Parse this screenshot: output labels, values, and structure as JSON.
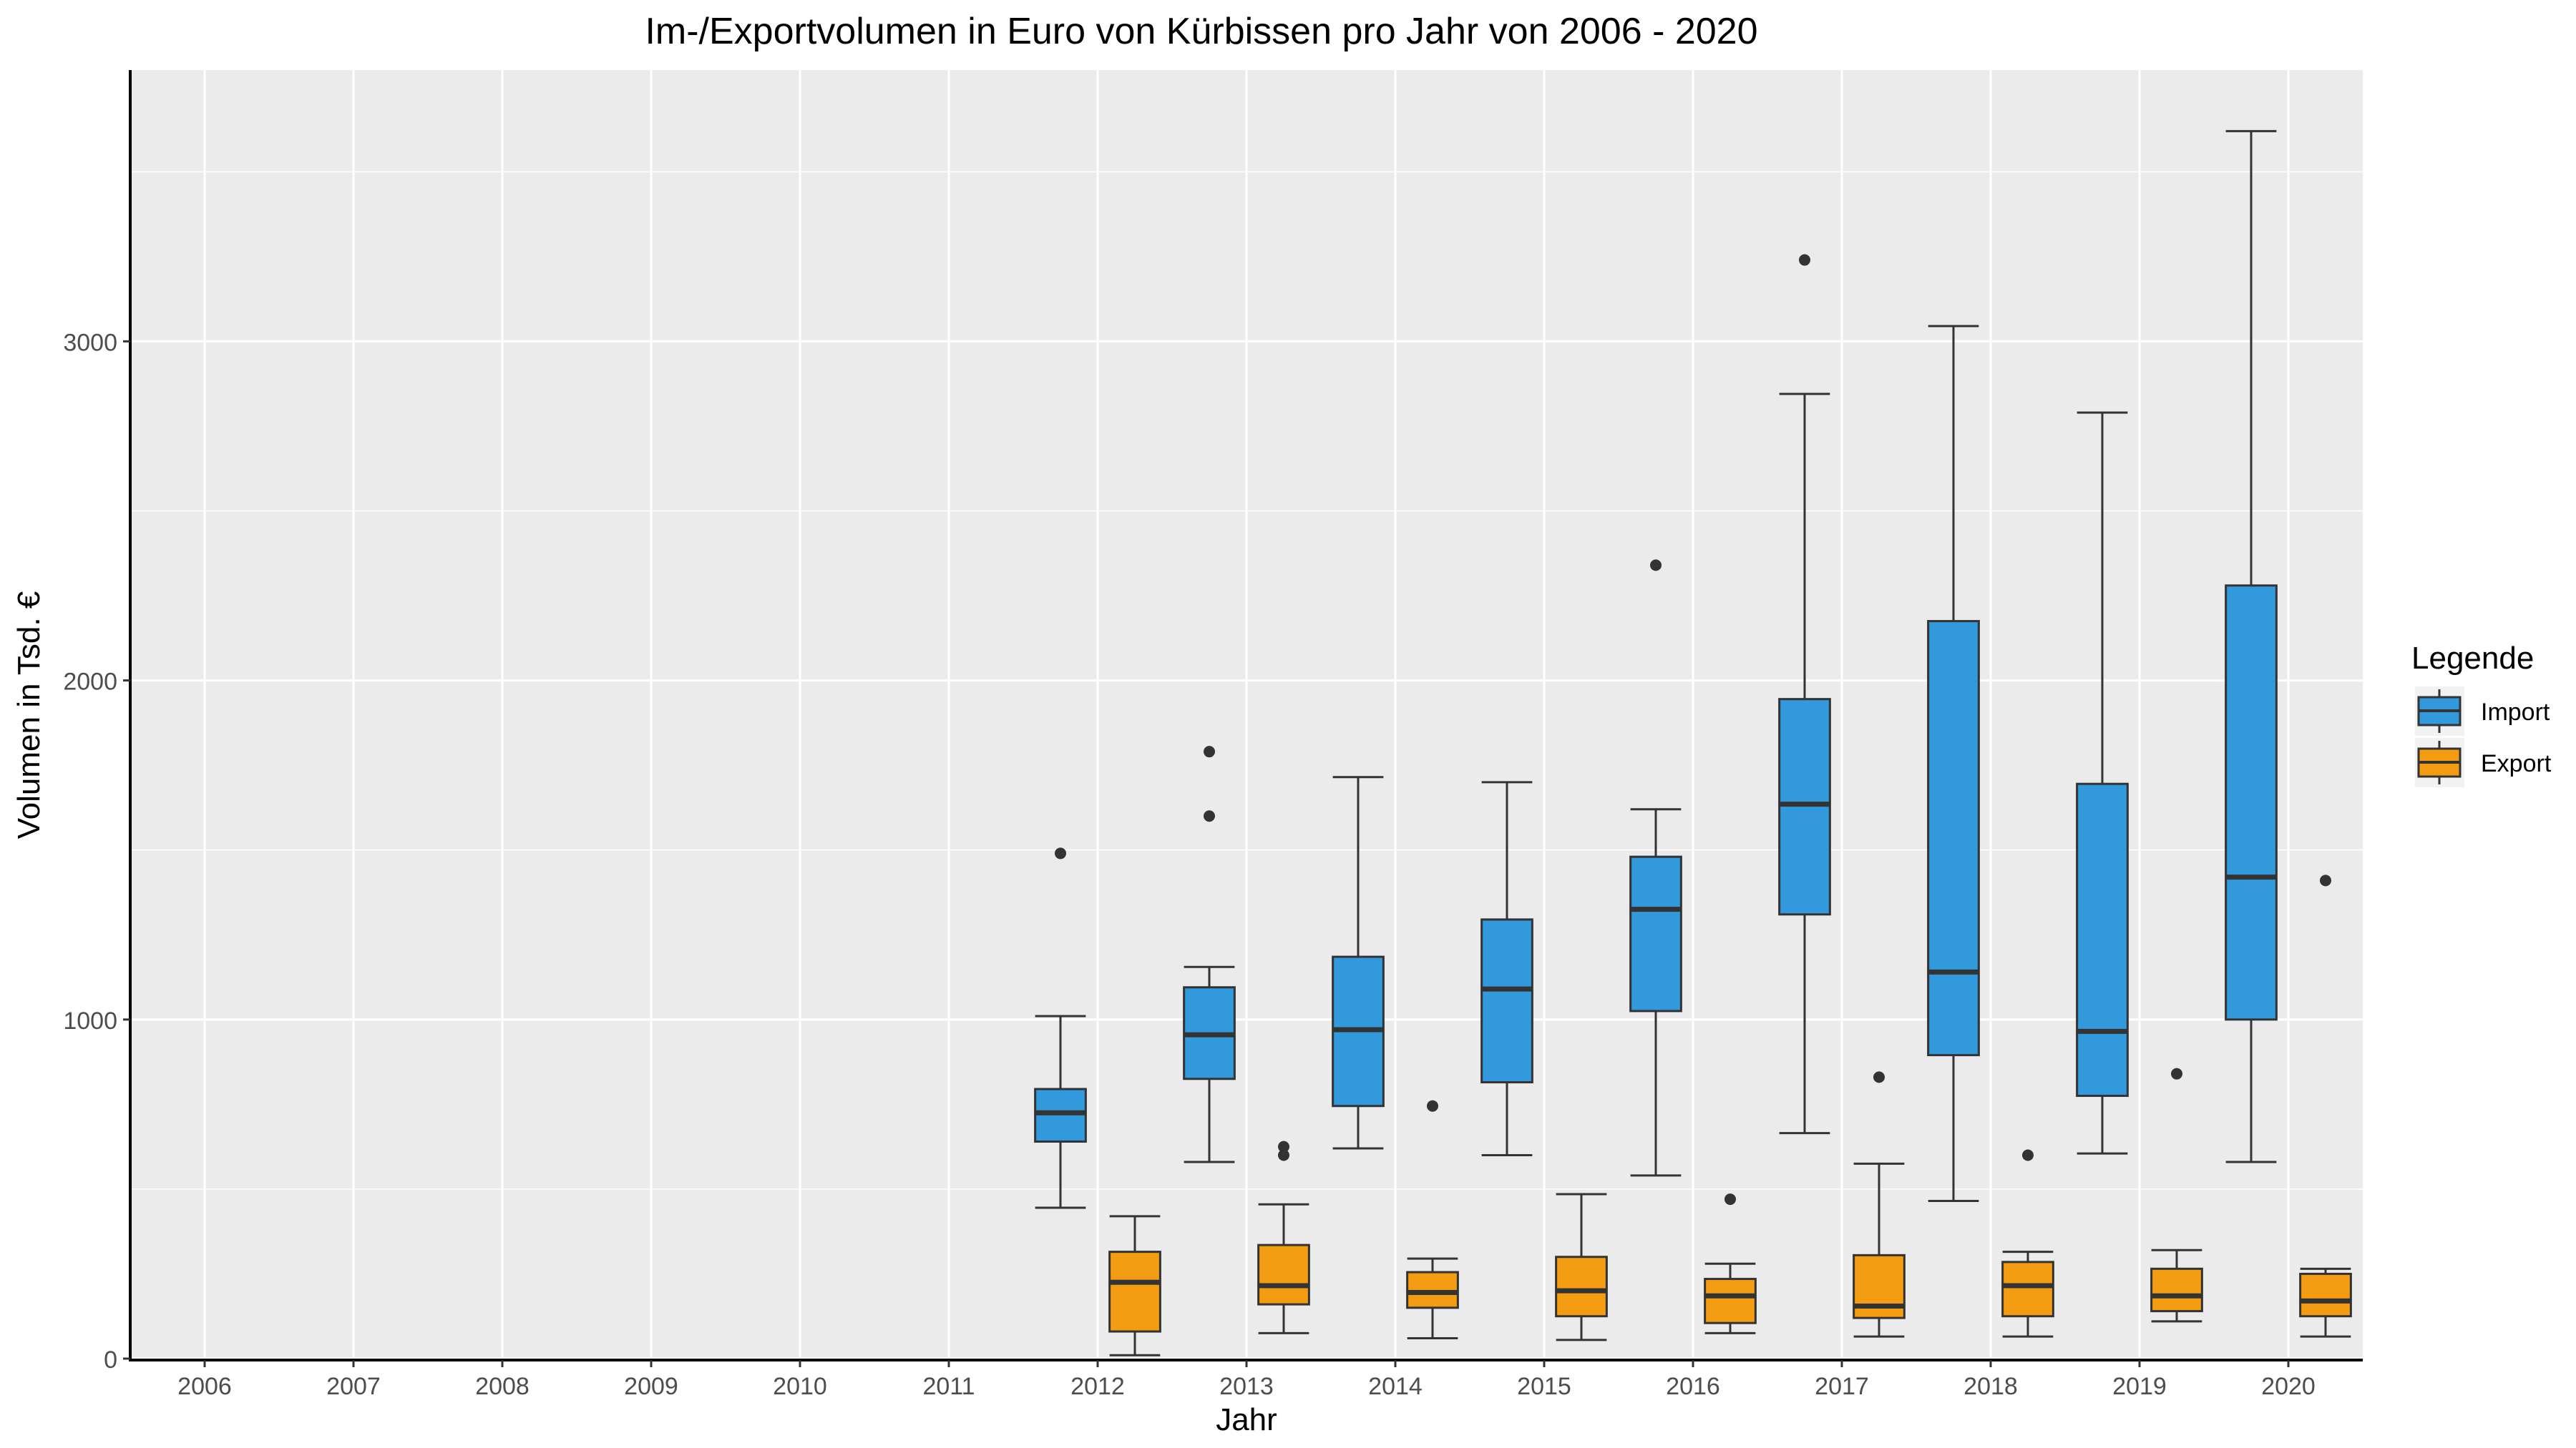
{
  "chart_data": {
    "type": "boxplot",
    "title": "Im-/Exportvolumen in Euro von Kürbissen pro Jahr von 2006 - 2020",
    "xlabel": "Jahr",
    "ylabel": "Volumen in Tsd. €",
    "ylim": [
      0,
      3800
    ],
    "yticks": [
      0,
      1000,
      2000,
      3000
    ],
    "grid": true,
    "legend": {
      "title": "Legende",
      "position": "right"
    },
    "categories": [
      "2006",
      "2007",
      "2008",
      "2009",
      "2010",
      "2011",
      "2012",
      "2013",
      "2014",
      "2015",
      "2016",
      "2017",
      "2018",
      "2019",
      "2020"
    ],
    "series": [
      {
        "name": "Import",
        "color": "#3399DD",
        "boxes": [
          {
            "x": "2012",
            "min": 445,
            "q1": 640,
            "median": 725,
            "q3": 795,
            "max": 1010,
            "outliers": [
              1490
            ]
          },
          {
            "x": "2013",
            "min": 580,
            "q1": 825,
            "median": 955,
            "q3": 1095,
            "max": 1155,
            "outliers": [
              1600,
              1790
            ]
          },
          {
            "x": "2014",
            "min": 620,
            "q1": 745,
            "median": 970,
            "q3": 1185,
            "max": 1715,
            "outliers": []
          },
          {
            "x": "2015",
            "min": 600,
            "q1": 815,
            "median": 1090,
            "q3": 1295,
            "max": 1700,
            "outliers": []
          },
          {
            "x": "2016",
            "min": 540,
            "q1": 1025,
            "median": 1325,
            "q3": 1480,
            "max": 1620,
            "outliers": [
              2340
            ]
          },
          {
            "x": "2017",
            "min": 665,
            "q1": 1310,
            "median": 1635,
            "q3": 1945,
            "max": 2845,
            "outliers": [
              3240
            ]
          },
          {
            "x": "2018",
            "min": 465,
            "q1": 895,
            "median": 1140,
            "q3": 2175,
            "max": 3045,
            "outliers": []
          },
          {
            "x": "2019",
            "min": 605,
            "q1": 775,
            "median": 965,
            "q3": 1695,
            "max": 2790,
            "outliers": []
          },
          {
            "x": "2020",
            "min": 580,
            "q1": 1000,
            "median": 1420,
            "q3": 2280,
            "max": 3620,
            "outliers": []
          }
        ]
      },
      {
        "name": "Export",
        "color": "#F39C12",
        "boxes": [
          {
            "x": "2012",
            "min": 10,
            "q1": 80,
            "median": 225,
            "q3": 315,
            "max": 420,
            "outliers": []
          },
          {
            "x": "2013",
            "min": 75,
            "q1": 160,
            "median": 215,
            "q3": 335,
            "max": 455,
            "outliers": [
              600,
              625
            ]
          },
          {
            "x": "2014",
            "min": 60,
            "q1": 150,
            "median": 195,
            "q3": 255,
            "max": 295,
            "outliers": [
              745
            ]
          },
          {
            "x": "2015",
            "min": 55,
            "q1": 125,
            "median": 200,
            "q3": 300,
            "max": 485,
            "outliers": []
          },
          {
            "x": "2016",
            "min": 75,
            "q1": 105,
            "median": 185,
            "q3": 235,
            "max": 280,
            "outliers": [
              470
            ]
          },
          {
            "x": "2017",
            "min": 65,
            "q1": 120,
            "median": 155,
            "q3": 305,
            "max": 575,
            "outliers": [
              830
            ]
          },
          {
            "x": "2018",
            "min": 65,
            "q1": 125,
            "median": 215,
            "q3": 285,
            "max": 315,
            "outliers": [
              600
            ]
          },
          {
            "x": "2019",
            "min": 110,
            "q1": 140,
            "median": 185,
            "q3": 265,
            "max": 320,
            "outliers": [
              840
            ]
          },
          {
            "x": "2020",
            "min": 65,
            "q1": 125,
            "median": 170,
            "q3": 250,
            "max": 265,
            "outliers": [
              1410
            ]
          }
        ]
      }
    ]
  }
}
